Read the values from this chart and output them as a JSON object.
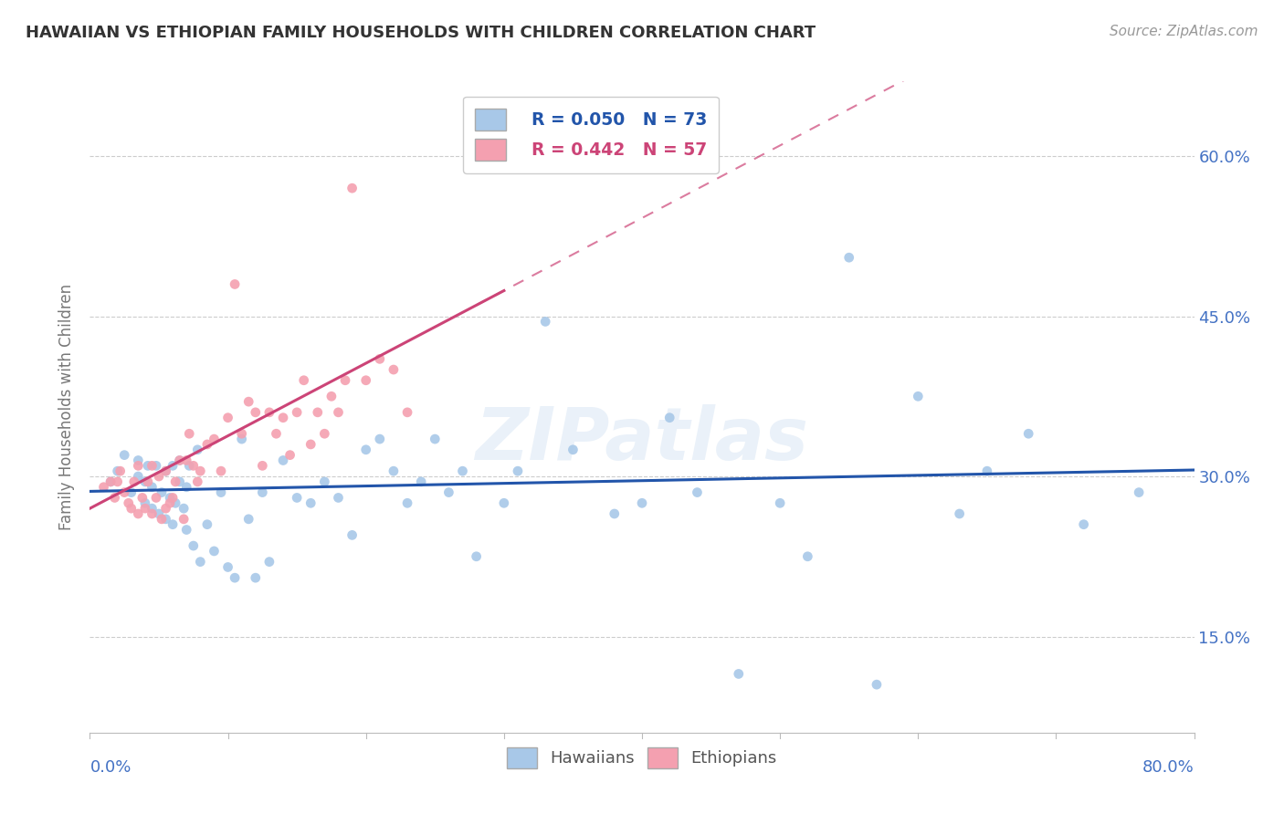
{
  "title": "HAWAIIAN VS ETHIOPIAN FAMILY HOUSEHOLDS WITH CHILDREN CORRELATION CHART",
  "source": "Source: ZipAtlas.com",
  "ylabel": "Family Households with Children",
  "ytick_values": [
    0.15,
    0.3,
    0.45,
    0.6
  ],
  "xlim": [
    0.0,
    0.8
  ],
  "ylim": [
    0.06,
    0.67
  ],
  "hawaiian_color": "#a8c8e8",
  "ethiopian_color": "#f4a0b0",
  "trend_hawaiian_color": "#2255aa",
  "trend_ethiopian_color": "#cc4477",
  "watermark": "ZIPatlas",
  "hawaiian_x": [
    0.015,
    0.02,
    0.025,
    0.03,
    0.035,
    0.035,
    0.04,
    0.04,
    0.042,
    0.045,
    0.045,
    0.048,
    0.05,
    0.052,
    0.055,
    0.055,
    0.058,
    0.06,
    0.06,
    0.062,
    0.065,
    0.065,
    0.068,
    0.07,
    0.07,
    0.072,
    0.075,
    0.078,
    0.08,
    0.085,
    0.09,
    0.095,
    0.1,
    0.105,
    0.11,
    0.115,
    0.12,
    0.125,
    0.13,
    0.14,
    0.15,
    0.16,
    0.17,
    0.18,
    0.19,
    0.2,
    0.21,
    0.22,
    0.23,
    0.24,
    0.25,
    0.26,
    0.27,
    0.28,
    0.3,
    0.31,
    0.33,
    0.35,
    0.38,
    0.4,
    0.42,
    0.44,
    0.47,
    0.5,
    0.52,
    0.55,
    0.57,
    0.6,
    0.63,
    0.65,
    0.68,
    0.72,
    0.76
  ],
  "hawaiian_y": [
    0.295,
    0.305,
    0.32,
    0.285,
    0.3,
    0.315,
    0.275,
    0.295,
    0.31,
    0.27,
    0.29,
    0.31,
    0.265,
    0.285,
    0.26,
    0.305,
    0.28,
    0.255,
    0.31,
    0.275,
    0.295,
    0.315,
    0.27,
    0.25,
    0.29,
    0.31,
    0.235,
    0.325,
    0.22,
    0.255,
    0.23,
    0.285,
    0.215,
    0.205,
    0.335,
    0.26,
    0.205,
    0.285,
    0.22,
    0.315,
    0.28,
    0.275,
    0.295,
    0.28,
    0.245,
    0.325,
    0.335,
    0.305,
    0.275,
    0.295,
    0.335,
    0.285,
    0.305,
    0.225,
    0.275,
    0.305,
    0.445,
    0.325,
    0.265,
    0.275,
    0.355,
    0.285,
    0.115,
    0.275,
    0.225,
    0.505,
    0.105,
    0.375,
    0.265,
    0.305,
    0.34,
    0.255,
    0.285
  ],
  "ethiopian_x": [
    0.01,
    0.015,
    0.018,
    0.02,
    0.022,
    0.025,
    0.028,
    0.03,
    0.032,
    0.035,
    0.035,
    0.038,
    0.04,
    0.042,
    0.045,
    0.045,
    0.048,
    0.05,
    0.052,
    0.055,
    0.055,
    0.058,
    0.06,
    0.062,
    0.065,
    0.068,
    0.07,
    0.072,
    0.075,
    0.078,
    0.08,
    0.085,
    0.09,
    0.095,
    0.1,
    0.105,
    0.11,
    0.115,
    0.12,
    0.125,
    0.13,
    0.135,
    0.14,
    0.145,
    0.15,
    0.155,
    0.16,
    0.165,
    0.17,
    0.175,
    0.18,
    0.185,
    0.19,
    0.2,
    0.21,
    0.22,
    0.23
  ],
  "ethiopian_y": [
    0.29,
    0.295,
    0.28,
    0.295,
    0.305,
    0.285,
    0.275,
    0.27,
    0.295,
    0.265,
    0.31,
    0.28,
    0.27,
    0.295,
    0.265,
    0.31,
    0.28,
    0.3,
    0.26,
    0.27,
    0.305,
    0.275,
    0.28,
    0.295,
    0.315,
    0.26,
    0.315,
    0.34,
    0.31,
    0.295,
    0.305,
    0.33,
    0.335,
    0.305,
    0.355,
    0.48,
    0.34,
    0.37,
    0.36,
    0.31,
    0.36,
    0.34,
    0.355,
    0.32,
    0.36,
    0.39,
    0.33,
    0.36,
    0.34,
    0.375,
    0.36,
    0.39,
    0.57,
    0.39,
    0.41,
    0.4,
    0.36
  ]
}
